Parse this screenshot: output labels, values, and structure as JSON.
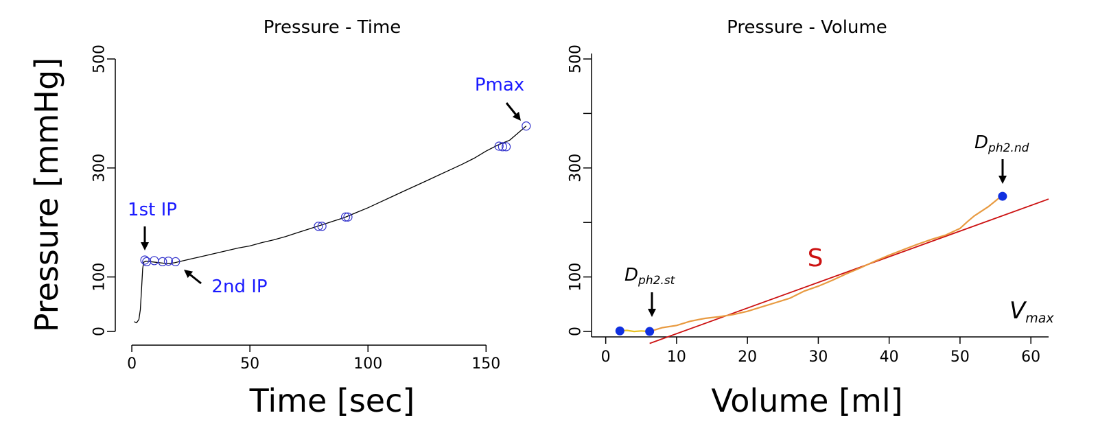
{
  "colors": {
    "axis": "#000000",
    "trace_pt": "#000000",
    "marker_pt": "#3333cc",
    "annotation_blue": "#1a1aff",
    "phase1": "#e8c020",
    "phase2": "#e89a40",
    "fit_line": "#cc1111",
    "dot": "#1030e0"
  },
  "chart_data": [
    {
      "type": "line",
      "title": "Pressure - Time",
      "xlabel": "Time [sec]",
      "ylabel": "Pressure [mmHg]",
      "xlim": [
        -7,
        172
      ],
      "ylim": [
        -10,
        510
      ],
      "xticks": [
        0,
        50,
        100,
        150
      ],
      "yticks": [
        0,
        100,
        300,
        500
      ],
      "grid": false,
      "series": [
        {
          "x": [
            1.0,
            2.0,
            3.0,
            3.6,
            4.0,
            4.6,
            5.0,
            6,
            8,
            10,
            12,
            14,
            16,
            18,
            20,
            25,
            30,
            35,
            40,
            45,
            50,
            55,
            60,
            65,
            70,
            75,
            80,
            85,
            90,
            95,
            100,
            105,
            110,
            115,
            120,
            125,
            130,
            135,
            140,
            145,
            150,
            155,
            160,
            163,
            167
          ],
          "y": [
            18,
            16,
            22,
            40,
            70,
            115,
            127,
            129,
            128,
            127,
            126,
            125,
            125,
            126,
            128,
            133,
            138,
            143,
            148,
            153,
            157,
            163,
            168,
            174,
            181,
            188,
            195,
            202,
            209,
            218,
            227,
            237,
            247,
            257,
            267,
            277,
            287,
            297,
            307,
            318,
            331,
            342,
            351,
            362,
            377
          ]
        }
      ],
      "markers": {
        "x": [
          5.5,
          6.3,
          9.5,
          13,
          15.5,
          18.5,
          79,
          80.5,
          90.5,
          91.5,
          155.5,
          157,
          158.5,
          167
        ],
        "y": [
          131,
          128,
          130,
          128,
          129,
          128,
          193,
          193,
          210,
          210,
          340,
          339,
          339,
          377
        ]
      },
      "annotations": [
        {
          "text": "Pmax",
          "x": 163,
          "y": 393
        },
        {
          "text": "1st IP",
          "x": 5,
          "y": 145
        },
        {
          "text": "2nd IP",
          "x": 21,
          "y": 108
        }
      ]
    },
    {
      "type": "line",
      "title": "Pressure - Volume",
      "xlabel": "Volume [ml]",
      "ylabel": "",
      "xlim": [
        -2,
        62.5
      ],
      "ylim": [
        -10,
        510
      ],
      "xticks": [
        0,
        10,
        20,
        30,
        40,
        50,
        60
      ],
      "yticks": [
        0,
        100,
        300,
        500
      ],
      "grid": false,
      "series": [
        {
          "x": [
            2.0,
            3,
            4,
            5,
            6.2
          ],
          "y": [
            1,
            2,
            0,
            1,
            0
          ]
        },
        {
          "x": [
            6.2,
            8,
            10,
            12,
            14,
            16,
            18,
            20,
            22,
            24,
            26,
            28,
            30,
            32,
            34,
            36,
            38,
            40,
            42,
            44,
            46,
            48,
            50,
            51,
            52,
            54,
            56
          ],
          "y": [
            0,
            7,
            11,
            19,
            24,
            27,
            31,
            37,
            45,
            53,
            61,
            74,
            83,
            94,
            106,
            117,
            129,
            140,
            150,
            160,
            169,
            177,
            189,
            201,
            212,
            229,
            250
          ]
        }
      ],
      "fit_line": {
        "x": [
          6.2,
          62.5
        ],
        "y": [
          -22,
          243
        ]
      },
      "points": {
        "x": [
          2.0,
          6.2,
          56.0
        ],
        "y": [
          1,
          0,
          248
        ]
      },
      "annotations": [
        {
          "text": "S",
          "x": 28.5,
          "y": 130
        },
        {
          "text": "D",
          "sub": "ph2.st",
          "x": 3,
          "y": 90
        },
        {
          "text": "D",
          "sub": "ph2.nd",
          "x": 51,
          "y": 339
        },
        {
          "text": "V",
          "sub": "max",
          "x": 55.5,
          "y": 25
        }
      ]
    }
  ]
}
